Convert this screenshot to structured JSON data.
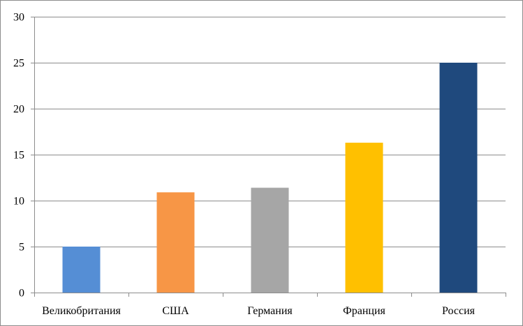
{
  "chart_data": {
    "type": "bar",
    "categories": [
      "Великобритания",
      "США",
      "Германия",
      "Франция",
      "Россия"
    ],
    "values": [
      5,
      10.9,
      11.4,
      16.3,
      25
    ],
    "colors": [
      "#558ed5",
      "#f79646",
      "#a6a6a6",
      "#ffc000",
      "#1f497d"
    ],
    "ylim": [
      0,
      30
    ],
    "yticks": [
      0,
      5,
      10,
      15,
      20,
      25,
      30
    ],
    "grid": true,
    "legend": "none"
  }
}
